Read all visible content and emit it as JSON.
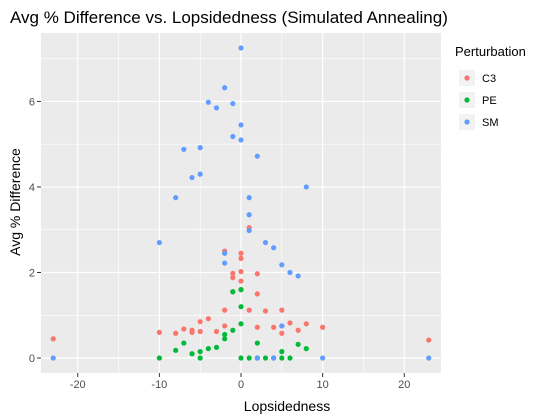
{
  "chart_data": {
    "type": "scatter",
    "title": "Avg % Difference vs. Lopsidedness (Simulated Annealing)",
    "xlabel": "Lopsidedness",
    "ylabel": "Avg % Difference",
    "xlim": [
      -24.5,
      24.5
    ],
    "ylim": [
      -0.35,
      7.6
    ],
    "x_ticks": [
      -20,
      -10,
      0,
      10,
      20
    ],
    "y_ticks": [
      0,
      2,
      4,
      6
    ],
    "grid": true,
    "legend": {
      "title": "Perturbation",
      "position": "top-right"
    },
    "series": [
      {
        "name": "C3",
        "color": "#F8766D",
        "points": [
          [
            -23,
            0.45
          ],
          [
            -10,
            0.6
          ],
          [
            -8,
            0.58
          ],
          [
            -7,
            0.68
          ],
          [
            -6,
            0.6
          ],
          [
            -6,
            0.65
          ],
          [
            -5,
            0.62
          ],
          [
            -5,
            0.85
          ],
          [
            -4,
            0.92
          ],
          [
            -3,
            0.62
          ],
          [
            -2,
            0.75
          ],
          [
            -2,
            1.12
          ],
          [
            -2,
            2.5
          ],
          [
            -1,
            1.88
          ],
          [
            -1,
            1.98
          ],
          [
            -1,
            1.55
          ],
          [
            0,
            1.6
          ],
          [
            0,
            1.8
          ],
          [
            0,
            2.02
          ],
          [
            0,
            2.33
          ],
          [
            0,
            2.45
          ],
          [
            1,
            3.05
          ],
          [
            1,
            1.12
          ],
          [
            2,
            1.97
          ],
          [
            2,
            1.5
          ],
          [
            2,
            0.72
          ],
          [
            3,
            1.1
          ],
          [
            4,
            0.72
          ],
          [
            5,
            1.12
          ],
          [
            5,
            0.75
          ],
          [
            5,
            0.58
          ],
          [
            6,
            0.82
          ],
          [
            7,
            0.65
          ],
          [
            8,
            0.8
          ],
          [
            10,
            0.72
          ],
          [
            23,
            0.42
          ]
        ]
      },
      {
        "name": "PE",
        "color": "#00BA38",
        "points": [
          [
            -10,
            0.0
          ],
          [
            -8,
            0.18
          ],
          [
            -7,
            0.35
          ],
          [
            -6,
            0.1
          ],
          [
            -5,
            0.0
          ],
          [
            -5,
            0.15
          ],
          [
            -4,
            0.22
          ],
          [
            -3,
            0.25
          ],
          [
            -2,
            0.45
          ],
          [
            -2,
            0.55
          ],
          [
            -1,
            0.65
          ],
          [
            -1,
            1.55
          ],
          [
            0,
            1.2
          ],
          [
            0,
            1.6
          ],
          [
            0,
            0.8
          ],
          [
            0,
            0.0
          ],
          [
            1,
            0.0
          ],
          [
            2,
            0.35
          ],
          [
            2,
            0.0
          ],
          [
            3,
            0.0
          ],
          [
            4,
            0.0
          ],
          [
            5,
            0.15
          ],
          [
            5,
            0.0
          ],
          [
            6,
            0.0
          ],
          [
            7,
            0.32
          ],
          [
            8,
            0.22
          ]
        ]
      },
      {
        "name": "SM",
        "color": "#619CFF",
        "points": [
          [
            -23,
            0.0
          ],
          [
            -10,
            2.7
          ],
          [
            -8,
            3.75
          ],
          [
            -7,
            4.88
          ],
          [
            -6,
            4.22
          ],
          [
            -5,
            4.92
          ],
          [
            -5,
            4.3
          ],
          [
            -4,
            5.98
          ],
          [
            -3,
            5.85
          ],
          [
            -2,
            6.32
          ],
          [
            -2,
            2.45
          ],
          [
            -2,
            2.22
          ],
          [
            -1,
            5.95
          ],
          [
            -1,
            5.18
          ],
          [
            0,
            7.25
          ],
          [
            0,
            5.45
          ],
          [
            0,
            5.1
          ],
          [
            1,
            3.75
          ],
          [
            1,
            3.35
          ],
          [
            1,
            2.98
          ],
          [
            2,
            4.72
          ],
          [
            3,
            2.7
          ],
          [
            4,
            2.58
          ],
          [
            5,
            2.18
          ],
          [
            5,
            0.75
          ],
          [
            6,
            2.0
          ],
          [
            7,
            1.92
          ],
          [
            8,
            4.0
          ],
          [
            2,
            0.0
          ],
          [
            4,
            0.0
          ],
          [
            10,
            0.0
          ],
          [
            23,
            0.0
          ]
        ]
      }
    ]
  }
}
